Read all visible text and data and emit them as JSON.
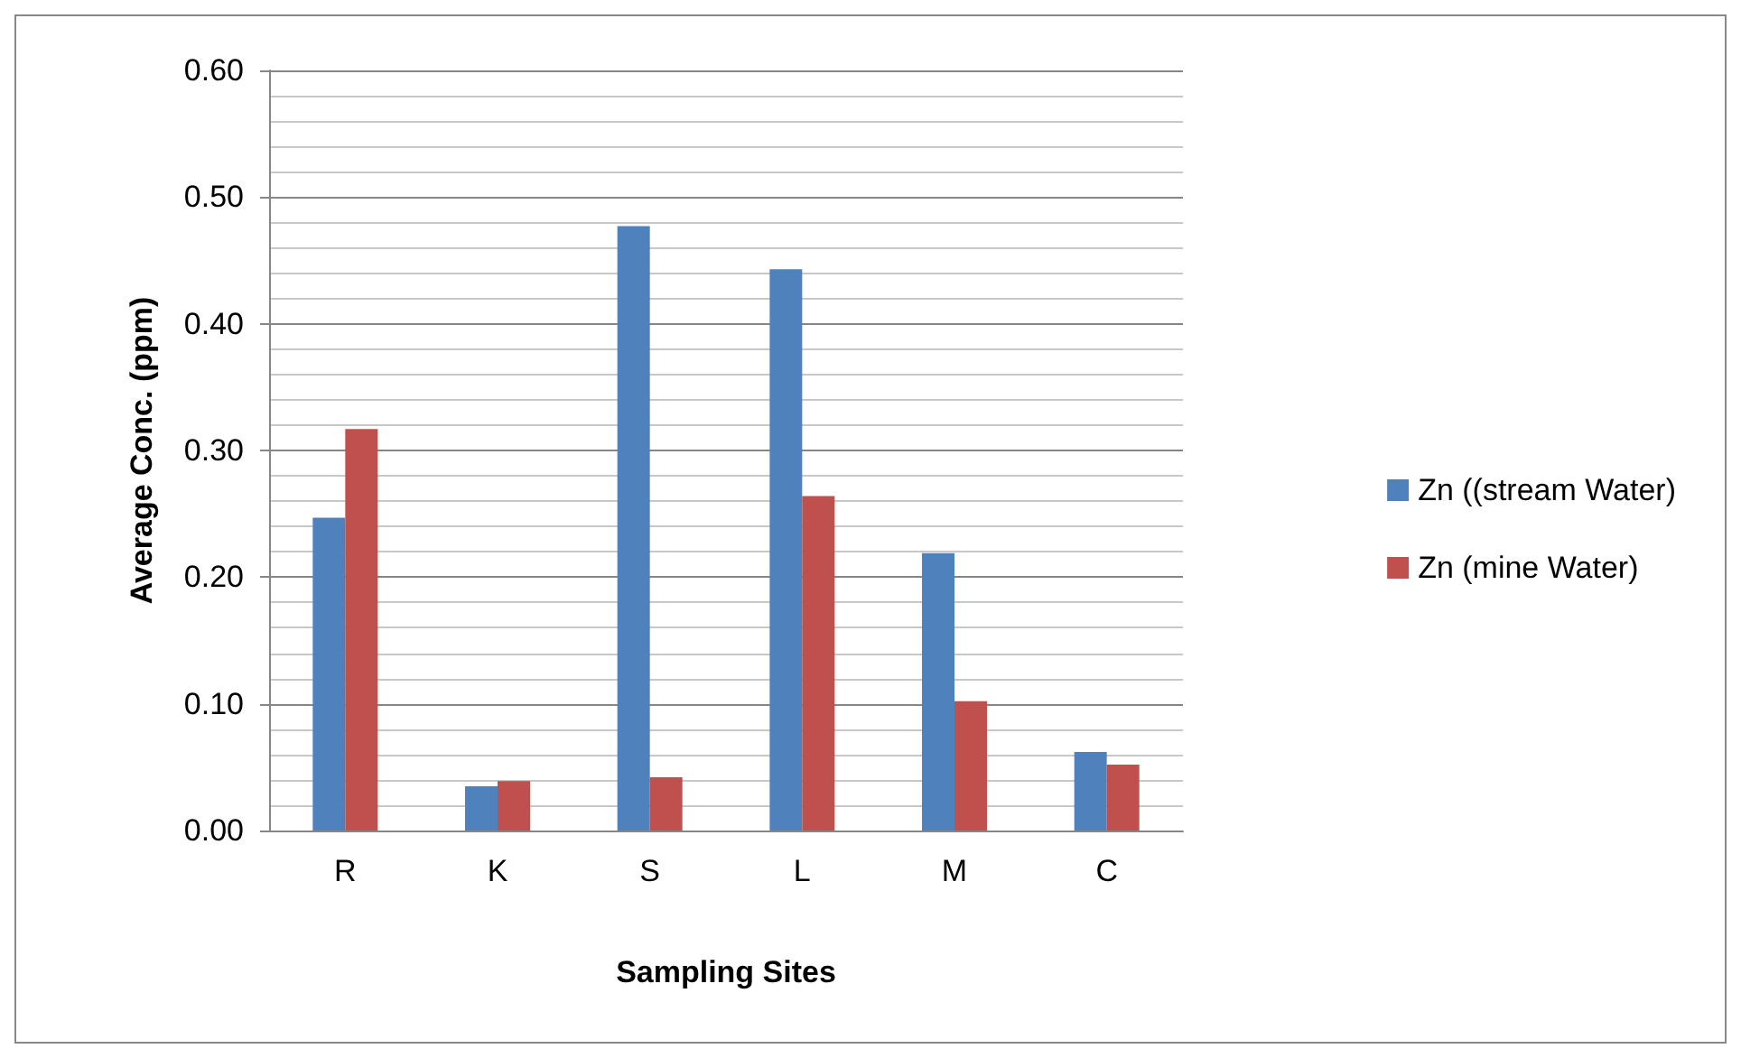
{
  "chart_data": {
    "type": "bar",
    "xlabel": "Sampling Sites",
    "ylabel": "Average Conc. (ppm)",
    "categories": [
      "R",
      "K",
      "S",
      "L",
      "M",
      "C"
    ],
    "series": [
      {
        "name": "Zn ((stream Water)",
        "color": "#4f81bd",
        "values": [
          0.247,
          0.035,
          0.477,
          0.443,
          0.219,
          0.062
        ]
      },
      {
        "name": "Zn (mine Water)",
        "color": "#c0504d",
        "values": [
          0.317,
          0.039,
          0.042,
          0.264,
          0.102,
          0.052
        ]
      }
    ],
    "ylim": [
      0,
      0.6
    ],
    "yticks": [
      {
        "value": 0,
        "label": "0.00"
      },
      {
        "value": 0.1,
        "label": "0.10"
      },
      {
        "value": 0.2,
        "label": "0.20"
      },
      {
        "value": 0.3,
        "label": "0.30"
      },
      {
        "value": 0.4,
        "label": "0.40"
      },
      {
        "value": 0.5,
        "label": "0.50"
      },
      {
        "value": 0.6,
        "label": "0.60"
      }
    ],
    "grid": true,
    "legend": "right"
  }
}
